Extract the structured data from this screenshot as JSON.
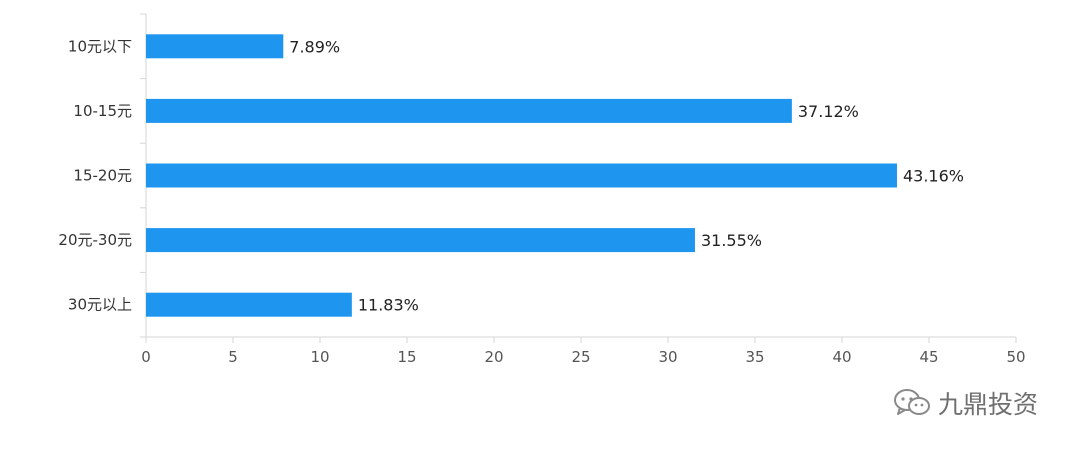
{
  "chart_data": {
    "type": "bar",
    "orientation": "horizontal",
    "categories": [
      "10元以下",
      "10-15元",
      "15-20元",
      "20元-30元",
      "30元以上"
    ],
    "values": [
      7.89,
      37.12,
      43.16,
      31.55,
      11.83
    ],
    "value_labels": [
      "7.89%",
      "37.12%",
      "43.16%",
      "31.55%",
      "11.83%"
    ],
    "x_ticks": [
      0,
      5,
      10,
      15,
      20,
      25,
      30,
      35,
      40,
      45,
      50
    ],
    "xlim": [
      0,
      50
    ],
    "grid": false,
    "bar_color": "#1e96f0"
  },
  "watermark": {
    "text": "九鼎投资",
    "icon": "wechat-icon"
  }
}
